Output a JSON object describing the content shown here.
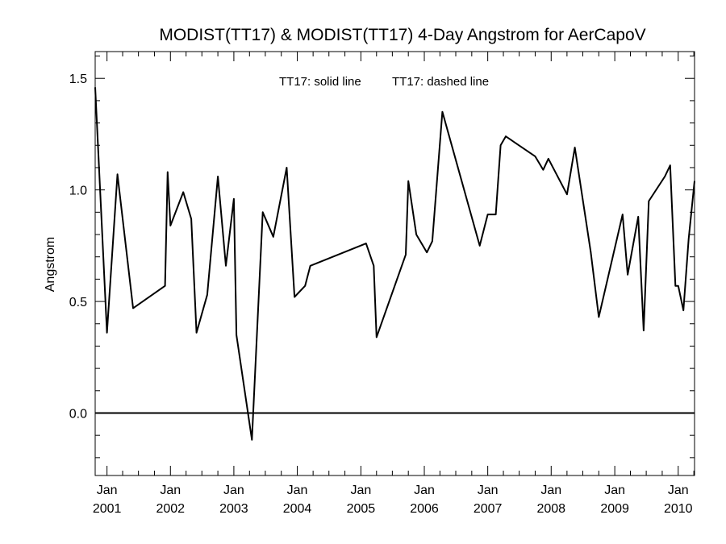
{
  "chart_data": {
    "type": "line",
    "title": "MODIST(TT17) & MODIST(TT17) 4-Day Angstrom for AerCapoV",
    "annotations": {
      "solid": "TT17: solid line",
      "dashed": "TT17: dashed line"
    },
    "xlabel": "",
    "ylabel": "Angstrom",
    "xlim": [
      "2000-10-25",
      "2010-04-05"
    ],
    "ylim": [
      -0.28,
      1.62
    ],
    "y_ticks": [
      0.0,
      0.5,
      1.0,
      1.5
    ],
    "y_tick_labels": [
      "0.0",
      "0.5",
      "1.0",
      "1.5"
    ],
    "x_ticks": [
      {
        "date": "2001-01-01",
        "month": "Jan",
        "year": "2001"
      },
      {
        "date": "2002-01-01",
        "month": "Jan",
        "year": "2002"
      },
      {
        "date": "2003-01-01",
        "month": "Jan",
        "year": "2003"
      },
      {
        "date": "2004-01-01",
        "month": "Jan",
        "year": "2004"
      },
      {
        "date": "2005-01-01",
        "month": "Jan",
        "year": "2005"
      },
      {
        "date": "2006-01-01",
        "month": "Jan",
        "year": "2006"
      },
      {
        "date": "2007-01-01",
        "month": "Jan",
        "year": "2007"
      },
      {
        "date": "2008-01-01",
        "month": "Jan",
        "year": "2008"
      },
      {
        "date": "2009-01-01",
        "month": "Jan",
        "year": "2009"
      },
      {
        "date": "2010-01-01",
        "month": "Jan",
        "year": "2010"
      }
    ],
    "reference_line": 0.0,
    "grid": false,
    "series": [
      {
        "name": "TT17",
        "style": "solid",
        "color": "#000000",
        "x": [
          "2000-10-25",
          "2001-01-01",
          "2001-03-02",
          "2001-05-31",
          "2001-12-01",
          "2001-12-16",
          "2002-01-01",
          "2002-03-16",
          "2002-05-01",
          "2002-05-31",
          "2002-08-01",
          "2002-10-01",
          "2002-11-16",
          "2003-01-01",
          "2003-01-16",
          "2003-04-15",
          "2003-06-16",
          "2003-08-16",
          "2003-11-01",
          "2003-12-16",
          "2004-02-15",
          "2004-03-16",
          "2005-01-31",
          "2005-03-16",
          "2005-04-01",
          "2005-09-16",
          "2005-10-01",
          "2005-11-16",
          "2006-01-16",
          "2006-02-16",
          "2006-04-15",
          "2006-11-16",
          "2007-01-01",
          "2007-02-16",
          "2007-03-16",
          "2007-04-15",
          "2007-10-01",
          "2007-11-16",
          "2007-12-16",
          "2008-04-01",
          "2008-05-16",
          "2008-08-16",
          "2008-10-01",
          "2009-02-15",
          "2009-03-16",
          "2009-05-16",
          "2009-06-16",
          "2009-07-16",
          "2009-10-16",
          "2009-11-16",
          "2009-12-16",
          "2010-01-01",
          "2010-01-31",
          "2010-03-02",
          "2010-04-05"
        ],
        "values": [
          1.46,
          0.36,
          1.07,
          0.47,
          0.57,
          1.08,
          0.84,
          0.99,
          0.87,
          0.36,
          0.53,
          1.06,
          0.66,
          0.96,
          0.35,
          -0.12,
          0.9,
          0.79,
          1.1,
          0.52,
          0.57,
          0.66,
          0.76,
          0.66,
          0.34,
          0.71,
          1.04,
          0.8,
          0.72,
          0.77,
          1.35,
          0.75,
          0.89,
          0.89,
          1.2,
          1.24,
          1.15,
          1.09,
          1.14,
          0.98,
          1.19,
          0.72,
          0.43,
          0.89,
          0.62,
          0.88,
          0.37,
          0.95,
          1.06,
          1.11,
          0.57,
          0.57,
          0.46,
          0.78,
          1.04
        ]
      }
    ]
  }
}
